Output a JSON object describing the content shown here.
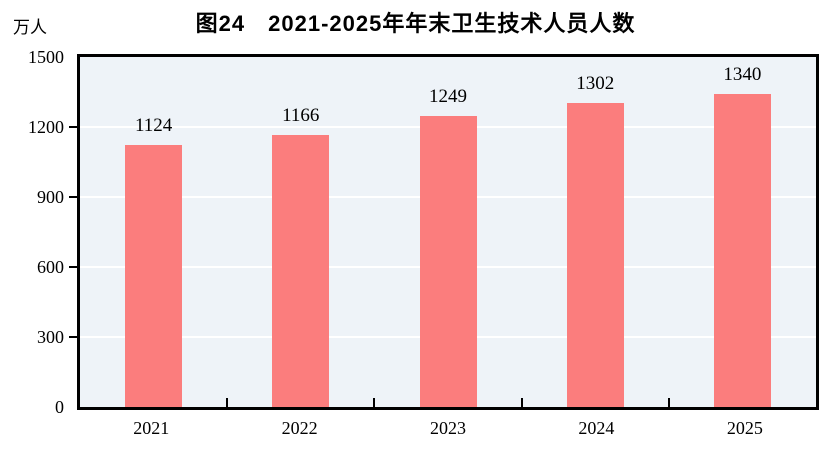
{
  "page": {
    "title": "图24　2021-2025年年末卫生技术人员人数",
    "y_unit_label": "万人"
  },
  "chart_data": {
    "type": "bar",
    "title": "图24　2021-2025年年末卫生技术人员人数",
    "ylabel": "万人",
    "xlabel": "",
    "categories": [
      "2021",
      "2022",
      "2023",
      "2024",
      "2025"
    ],
    "values": [
      1124,
      1166,
      1249,
      1302,
      1340
    ],
    "ylim": [
      0,
      1500
    ],
    "yticks": [
      0,
      300,
      600,
      900,
      1200,
      1500
    ],
    "grid": true,
    "legend_position": "none",
    "colors": {
      "bar": "#FB7D7D",
      "plot_background": "#EEF3F8",
      "gridline": "#FFFFFF",
      "axis": "#000000",
      "text": "#000000"
    }
  }
}
